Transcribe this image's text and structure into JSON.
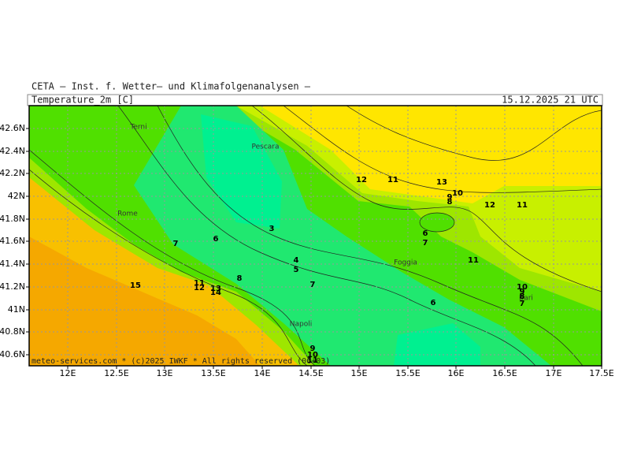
{
  "header": {
    "source": "CETA — Inst. f. Wetter— und Klimafolgenanalysen —",
    "field": "Temperature_2m [C]",
    "datetime": "15.12.2025 21 UTC"
  },
  "footer": "meteo-services.com * (c)2025 IWKF * All rights reserved (06+03)",
  "axes": {
    "x_labels": [
      "12E",
      "12.5E",
      "13E",
      "13.5E",
      "14E",
      "14.5E",
      "15E",
      "15.5E",
      "16E",
      "16.5E",
      "17E",
      "17.5E"
    ],
    "y_labels": [
      "42.6N",
      "42.4N",
      "42.2N",
      "42N",
      "41.8N",
      "41.6N",
      "41.4N",
      "41.2N",
      "41N",
      "40.8N",
      "40.6N"
    ]
  },
  "cities": [
    "Terni",
    "Pescara",
    "Rome",
    "Foggia",
    "Napoli",
    "Bari"
  ],
  "contour_labels": [
    "12",
    "11",
    "13",
    "10",
    "9",
    "8",
    "12",
    "11",
    "3",
    "6",
    "7",
    "6",
    "7",
    "11",
    "4",
    "5",
    "8",
    "7",
    "11",
    "12",
    "13",
    "14",
    "15",
    "10",
    "9",
    "8",
    "7",
    "6",
    "9",
    "10",
    "11"
  ]
}
